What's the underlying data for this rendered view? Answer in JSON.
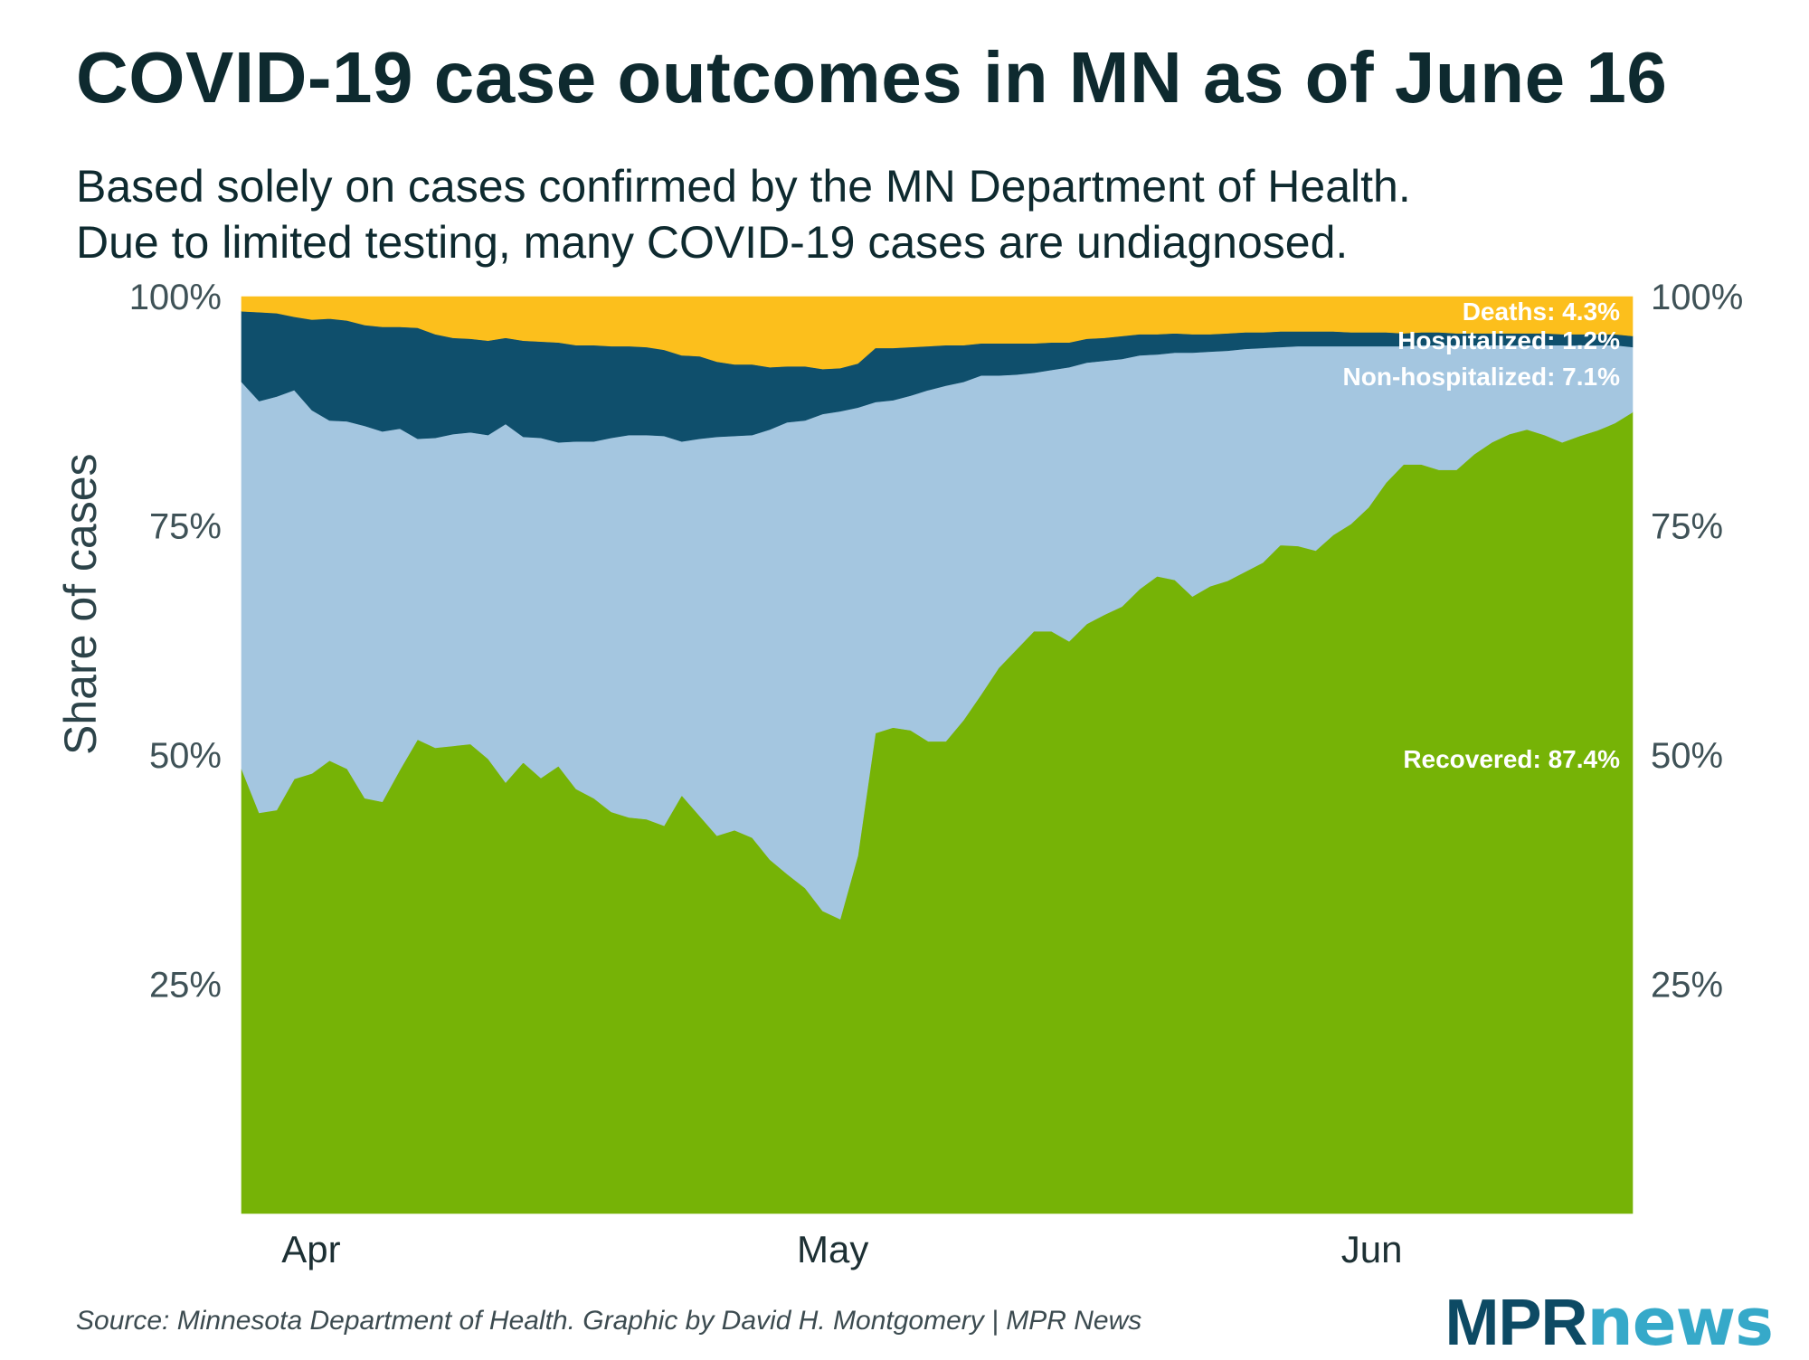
{
  "title": "COVID-19 case outcomes in MN as of June 16",
  "subtitle_lines": [
    "Based solely on cases confirmed by the MN Department of Health.",
    "Due to limited testing, many COVID-19 cases are undiagnosed."
  ],
  "source": "Source: Minnesota Department of Health. Graphic by David H. Montgomery | MPR News",
  "logo": {
    "part1": "MPR",
    "part2": "news"
  },
  "chart_data": {
    "type": "area",
    "stacked": true,
    "normalized": true,
    "ylabel": "Share of cases",
    "ylim": [
      0,
      100
    ],
    "y_ticks": [
      "25%",
      "50%",
      "75%",
      "100%"
    ],
    "y_tick_values": [
      25,
      50,
      75,
      100
    ],
    "x_tick_labels": [
      "Apr",
      "May",
      "Jun"
    ],
    "x_tick_dates": [
      "2020-04-01",
      "2020-05-01",
      "2020-06-01"
    ],
    "x_start": "2020-03-28",
    "x_end": "2020-06-16",
    "grid": false,
    "series": [
      {
        "name": "Recovered",
        "label": "Recovered: 87.4%",
        "color": "#76b306",
        "values": [
          48.5,
          43.7,
          44.0,
          47.4,
          48.0,
          49.4,
          48.5,
          45.3,
          44.9,
          48.4,
          51.7,
          50.8,
          51.0,
          51.2,
          49.6,
          47.0,
          49.2,
          47.5,
          48.8,
          46.3,
          45.3,
          43.8,
          43.2,
          43.0,
          42.3,
          45.6,
          43.4,
          41.2,
          41.8,
          41.0,
          38.6,
          37.0,
          35.5,
          33.0,
          32.1,
          39.0,
          52.4,
          53.0,
          52.7,
          51.5,
          51.5,
          53.8,
          56.6,
          59.5,
          61.5,
          63.5,
          63.5,
          62.4,
          64.3,
          65.3,
          66.2,
          68.1,
          69.5,
          69.1,
          67.3,
          68.4,
          69.0,
          70.0,
          71.0,
          72.9,
          72.8,
          72.3,
          74.0,
          75.2,
          77.0,
          79.7,
          81.7,
          81.7,
          81.1,
          81.1,
          82.8,
          84.1,
          85.0,
          85.5,
          84.9,
          84.1,
          84.8,
          85.4,
          86.2,
          87.4
        ]
      },
      {
        "name": "Non-hospitalized",
        "label": "Non-hospitalized: 7.1%",
        "color": "#a4c6e0",
        "values": [
          42.2,
          44.9,
          45.1,
          42.4,
          39.6,
          37.1,
          37.9,
          40.6,
          40.4,
          37.2,
          32.8,
          33.8,
          34.0,
          34.0,
          35.3,
          39.1,
          35.5,
          37.1,
          35.3,
          37.9,
          38.9,
          40.8,
          41.7,
          41.9,
          42.5,
          38.6,
          41.1,
          43.5,
          43.0,
          43.9,
          46.9,
          49.3,
          51.0,
          54.2,
          55.4,
          48.9,
          36.1,
          35.7,
          36.5,
          38.3,
          38.8,
          36.9,
          34.8,
          31.9,
          30.0,
          28.2,
          28.5,
          29.9,
          28.5,
          27.7,
          27.0,
          25.5,
          24.2,
          24.8,
          26.6,
          25.6,
          25.1,
          24.3,
          23.4,
          21.6,
          21.8,
          22.3,
          20.6,
          19.4,
          17.6,
          14.9,
          12.9,
          13.0,
          13.6,
          13.6,
          11.9,
          10.6,
          9.7,
          9.2,
          9.8,
          10.6,
          9.9,
          9.3,
          8.5,
          7.1
        ]
      },
      {
        "name": "Hospitalized",
        "label": "Hospitalized: 1.2%",
        "color": "#0f4f6c",
        "values": [
          7.7,
          9.7,
          9.1,
          8.0,
          9.9,
          11.1,
          11.0,
          11.0,
          11.4,
          11.1,
          12.1,
          11.3,
          10.5,
          10.2,
          10.3,
          9.4,
          10.5,
          10.5,
          10.9,
          10.5,
          10.5,
          10.0,
          9.7,
          9.6,
          9.4,
          9.4,
          9.0,
          8.2,
          7.8,
          7.7,
          6.8,
          6.1,
          5.9,
          4.9,
          4.7,
          4.8,
          5.9,
          5.7,
          5.3,
          4.8,
          4.4,
          4.0,
          3.5,
          3.5,
          3.4,
          3.2,
          3.0,
          2.7,
          2.6,
          2.5,
          2.5,
          2.3,
          2.2,
          2.1,
          2.0,
          1.9,
          1.9,
          1.8,
          1.7,
          1.7,
          1.6,
          1.6,
          1.6,
          1.5,
          1.5,
          1.5,
          1.4,
          1.4,
          1.4,
          1.3,
          1.3,
          1.3,
          1.3,
          1.3,
          1.3,
          1.2,
          1.2,
          1.2,
          1.2,
          1.2
        ]
      },
      {
        "name": "Deaths",
        "label": "Deaths: 4.3%",
        "color": "#fcbf1c",
        "values": [
          1.6,
          1.7,
          1.8,
          2.2,
          2.5,
          2.4,
          2.6,
          3.1,
          3.3,
          3.3,
          3.4,
          4.1,
          4.5,
          4.6,
          4.8,
          4.5,
          4.8,
          4.9,
          5.0,
          5.3,
          5.3,
          5.4,
          5.4,
          5.5,
          5.8,
          6.4,
          6.5,
          7.1,
          7.4,
          7.4,
          7.7,
          7.6,
          7.6,
          7.9,
          7.8,
          7.3,
          5.6,
          5.6,
          5.5,
          5.4,
          5.3,
          5.3,
          5.1,
          5.1,
          5.1,
          5.1,
          5.0,
          5.0,
          4.6,
          4.5,
          4.3,
          4.1,
          4.1,
          4.0,
          4.1,
          4.1,
          4.0,
          3.9,
          3.9,
          3.8,
          3.8,
          3.8,
          3.8,
          3.9,
          3.9,
          3.9,
          4.0,
          3.9,
          3.9,
          4.0,
          4.0,
          4.0,
          4.0,
          4.0,
          4.0,
          4.1,
          4.1,
          4.1,
          4.1,
          4.3
        ]
      }
    ]
  }
}
